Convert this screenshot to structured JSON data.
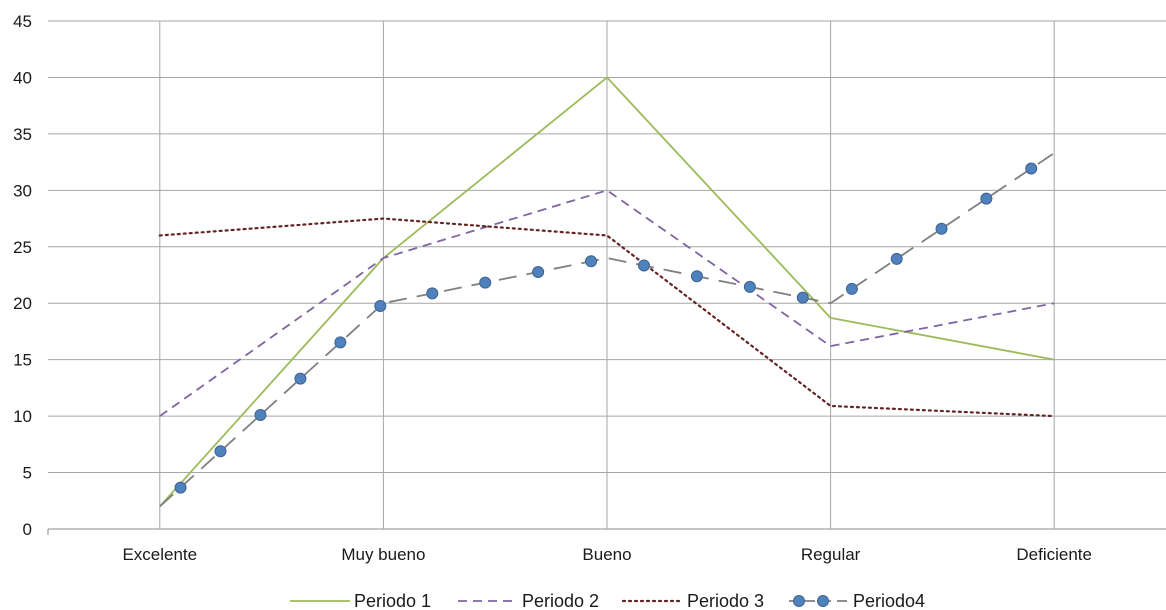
{
  "chart_data": {
    "type": "line",
    "title": "",
    "xlabel": "",
    "ylabel": "",
    "categories": [
      "Excelente",
      "Muy bueno",
      "Bueno",
      "Regular",
      "Deficiente"
    ],
    "ylim": [
      0,
      45
    ],
    "yticks": [
      0,
      5,
      10,
      15,
      20,
      25,
      30,
      35,
      40,
      45
    ],
    "grid": "vertical-and-horizontal",
    "legend_position": "bottom",
    "series": [
      {
        "name": "Periodo 1",
        "values": [
          2,
          24,
          40,
          18.7,
          15
        ],
        "color": "#9bbb59",
        "style": "solid",
        "marker": "none"
      },
      {
        "name": "Periodo 2",
        "values": [
          10,
          24,
          30,
          16.2,
          20
        ],
        "color": "#8064a2",
        "style": "dashed",
        "marker": "none"
      },
      {
        "name": "Periodo 3",
        "values": [
          26,
          27.5,
          26,
          10.9,
          10
        ],
        "color": "#632523",
        "style": "dotted",
        "marker": "none"
      },
      {
        "name": "Periodo4",
        "values": [
          2,
          20,
          24,
          20,
          33.3
        ],
        "color": "#7f7f7f",
        "style": "long-dash",
        "marker": "circle",
        "marker_color": "#4f81bd"
      }
    ]
  }
}
